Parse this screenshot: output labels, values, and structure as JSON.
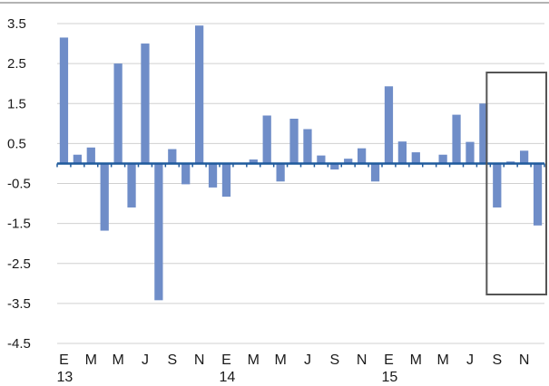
{
  "chart_data": {
    "type": "bar",
    "title": "",
    "xlabel": "",
    "ylabel": "",
    "ylim": [
      -4.5,
      3.5
    ],
    "yticks": [
      "3.5",
      "2.5",
      "1.5",
      "0.5",
      "-0.5",
      "-1.5",
      "-2.5",
      "-3.5",
      "-4.5"
    ],
    "grid": true,
    "colors": {
      "bar": "#6f8dc8",
      "zero_line": "#1f5a9c",
      "grid": "#d0d0d0",
      "highlight_box": "#555555"
    },
    "x_month_labels": [
      {
        "index": 0,
        "label": "E"
      },
      {
        "index": 2,
        "label": "M"
      },
      {
        "index": 4,
        "label": "M"
      },
      {
        "index": 6,
        "label": "J"
      },
      {
        "index": 8,
        "label": "S"
      },
      {
        "index": 10,
        "label": "N"
      },
      {
        "index": 12,
        "label": "E"
      },
      {
        "index": 14,
        "label": "M"
      },
      {
        "index": 16,
        "label": "M"
      },
      {
        "index": 18,
        "label": "J"
      },
      {
        "index": 20,
        "label": "S"
      },
      {
        "index": 22,
        "label": "N"
      },
      {
        "index": 24,
        "label": "E"
      },
      {
        "index": 26,
        "label": "M"
      },
      {
        "index": 28,
        "label": "M"
      },
      {
        "index": 30,
        "label": "J"
      },
      {
        "index": 32,
        "label": "S"
      },
      {
        "index": 34,
        "label": "N"
      }
    ],
    "x_year_labels": [
      {
        "index": 0,
        "label": "13"
      },
      {
        "index": 12,
        "label": "14"
      },
      {
        "index": 24,
        "label": "15"
      }
    ],
    "values": [
      3.15,
      0.22,
      0.4,
      -1.68,
      2.5,
      -1.1,
      3.0,
      -3.42,
      0.36,
      -0.52,
      3.45,
      -0.6,
      -0.83,
      0.0,
      0.1,
      1.2,
      -0.45,
      1.12,
      0.86,
      0.2,
      -0.15,
      0.12,
      0.38,
      -0.45,
      1.93,
      0.55,
      0.28,
      0.0,
      0.22,
      1.22,
      0.54,
      1.5,
      -1.1,
      0.05,
      0.32,
      -1.55
    ],
    "highlight_range": [
      32,
      35
    ]
  }
}
